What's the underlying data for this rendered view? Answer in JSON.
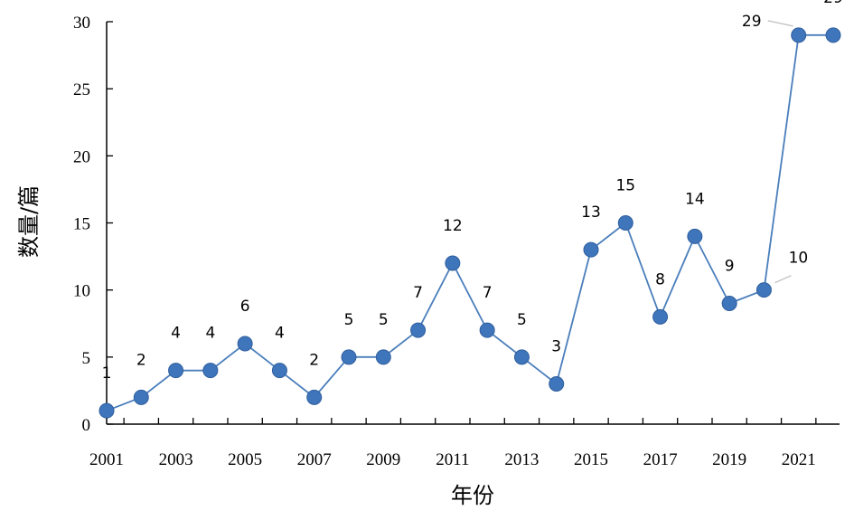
{
  "chart_data": {
    "type": "line",
    "xlabel": "年份",
    "ylabel": "数量/篇",
    "ylim": [
      0,
      30
    ],
    "yticks": [
      0,
      5,
      10,
      15,
      20,
      25,
      30
    ],
    "x": [
      2001,
      2002,
      2003,
      2004,
      2005,
      2006,
      2007,
      2008,
      2009,
      2010,
      2011,
      2012,
      2013,
      2014,
      2015,
      2016,
      2017,
      2018,
      2019,
      2020,
      2021,
      2022
    ],
    "xtick_labels": [
      "2001",
      "2003",
      "2005",
      "2007",
      "2009",
      "2011",
      "2013",
      "2015",
      "2017",
      "2019",
      "2021"
    ],
    "values": [
      1,
      2,
      4,
      4,
      6,
      4,
      2,
      5,
      5,
      7,
      12,
      7,
      5,
      3,
      13,
      15,
      8,
      14,
      9,
      10,
      29,
      29
    ],
    "line_color": "#4a7ebb",
    "marker_color": "#3f75bb",
    "grid": false
  }
}
